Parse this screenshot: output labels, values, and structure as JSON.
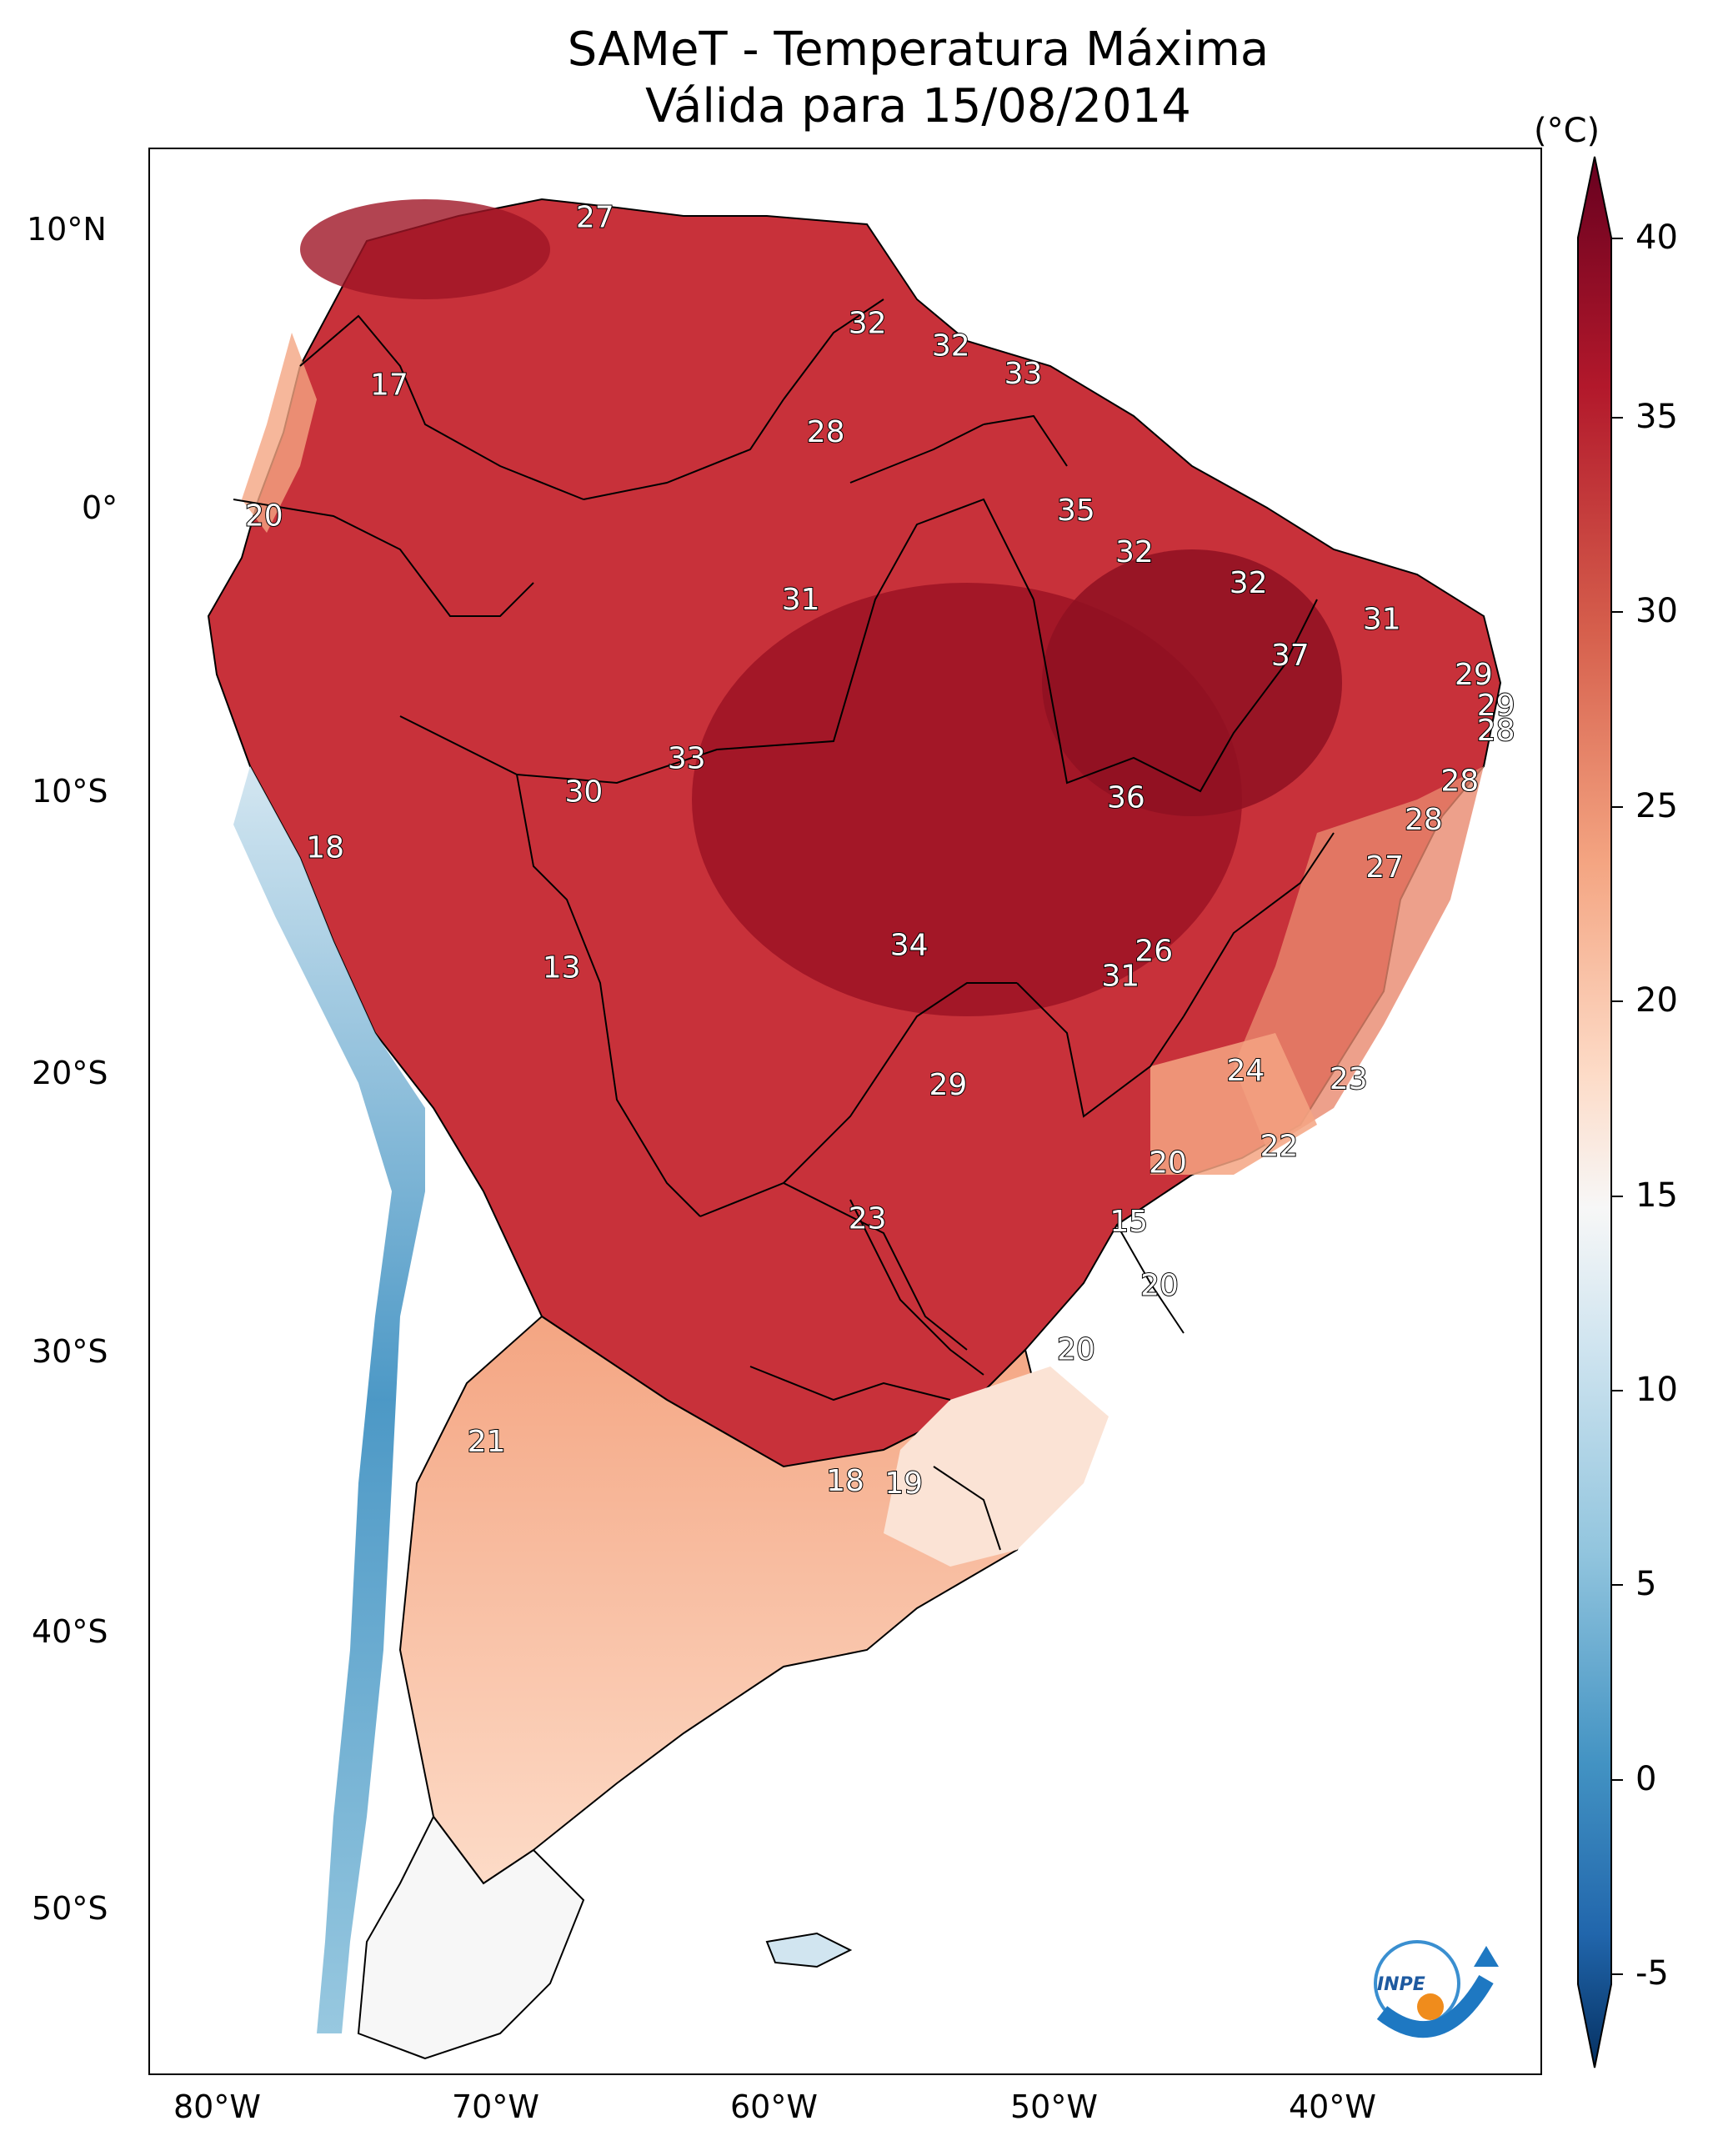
{
  "title_line1": "SAMeT - Temperatura Máxima",
  "title_line2": "Válida para 15/08/2014",
  "lat_labels": [
    "10°N",
    "0°",
    "10°S",
    "20°S",
    "30°S",
    "40°S",
    "50°S"
  ],
  "lon_labels": [
    "80°W",
    "70°W",
    "60°W",
    "50°W",
    "40°W"
  ],
  "colorbar": {
    "unit": "(°C)",
    "ticks": [
      "40",
      "35",
      "30",
      "25",
      "20",
      "15",
      "10",
      "5",
      "0",
      "-5"
    ],
    "colors": [
      "#67001f",
      "#b2182b",
      "#d6604d",
      "#f4a582",
      "#fddbc7",
      "#f7f7f7",
      "#d1e5f0",
      "#92c5de",
      "#4393c3",
      "#2166ac",
      "#053061"
    ]
  },
  "logo_text": "INPE",
  "chart_data": {
    "type": "map",
    "title": "SAMeT - Temperatura Máxima Válida para 15/08/2014",
    "variable": "Temperatura Máxima (°C)",
    "colorbar_range": [
      -5,
      40
    ],
    "lon_range": [
      -83,
      -33
    ],
    "lat_range": [
      -56,
      13
    ],
    "labels": [
      {
        "value": "27",
        "lon": -67.0,
        "lat": 10.5
      },
      {
        "value": "32",
        "lon": -57.2,
        "lat": 6.7
      },
      {
        "value": "32",
        "lon": -54.2,
        "lat": 5.9
      },
      {
        "value": "33",
        "lon": -51.6,
        "lat": 4.9
      },
      {
        "value": "17",
        "lon": -74.4,
        "lat": 4.5
      },
      {
        "value": "28",
        "lon": -58.7,
        "lat": 2.8
      },
      {
        "value": "35",
        "lon": -49.7,
        "lat": 0.0
      },
      {
        "value": "20",
        "lon": -78.9,
        "lat": -0.2
      },
      {
        "value": "32",
        "lon": -47.6,
        "lat": -1.5
      },
      {
        "value": "32",
        "lon": -43.5,
        "lat": -2.6
      },
      {
        "value": "31",
        "lon": -59.6,
        "lat": -3.2
      },
      {
        "value": "31",
        "lon": -38.7,
        "lat": -3.9
      },
      {
        "value": "37",
        "lon": -42.0,
        "lat": -5.2
      },
      {
        "value": "29",
        "lon": -35.4,
        "lat": -5.9
      },
      {
        "value": "29",
        "lon": -34.6,
        "lat": -7.0
      },
      {
        "value": "28",
        "lon": -34.6,
        "lat": -7.9
      },
      {
        "value": "33",
        "lon": -63.7,
        "lat": -8.9
      },
      {
        "value": "28",
        "lon": -35.9,
        "lat": -9.7
      },
      {
        "value": "30",
        "lon": -67.4,
        "lat": -10.1
      },
      {
        "value": "36",
        "lon": -47.9,
        "lat": -10.3
      },
      {
        "value": "28",
        "lon": -37.2,
        "lat": -11.1
      },
      {
        "value": "18",
        "lon": -76.7,
        "lat": -12.1
      },
      {
        "value": "27",
        "lon": -38.6,
        "lat": -12.8
      },
      {
        "value": "26",
        "lon": -46.9,
        "lat": -15.8
      },
      {
        "value": "34",
        "lon": -55.7,
        "lat": -15.6
      },
      {
        "value": "31",
        "lon": -48.1,
        "lat": -16.7
      },
      {
        "value": "13",
        "lon": -68.2,
        "lat": -16.4
      },
      {
        "value": "24",
        "lon": -43.6,
        "lat": -20.1
      },
      {
        "value": "23",
        "lon": -39.9,
        "lat": -20.4
      },
      {
        "value": "29",
        "lon": -54.3,
        "lat": -20.6
      },
      {
        "value": "22",
        "lon": -42.4,
        "lat": -22.8
      },
      {
        "value": "20",
        "lon": -46.4,
        "lat": -23.4
      },
      {
        "value": "15",
        "lon": -47.8,
        "lat": -25.5
      },
      {
        "value": "23",
        "lon": -57.2,
        "lat": -25.4
      },
      {
        "value": "20",
        "lon": -46.7,
        "lat": -27.8
      },
      {
        "value": "20",
        "lon": -49.7,
        "lat": -30.1
      },
      {
        "value": "21",
        "lon": -70.9,
        "lat": -33.4
      },
      {
        "value": "18",
        "lon": -58.0,
        "lat": -34.8
      },
      {
        "value": "19",
        "lon": -55.9,
        "lat": -34.9
      }
    ]
  }
}
